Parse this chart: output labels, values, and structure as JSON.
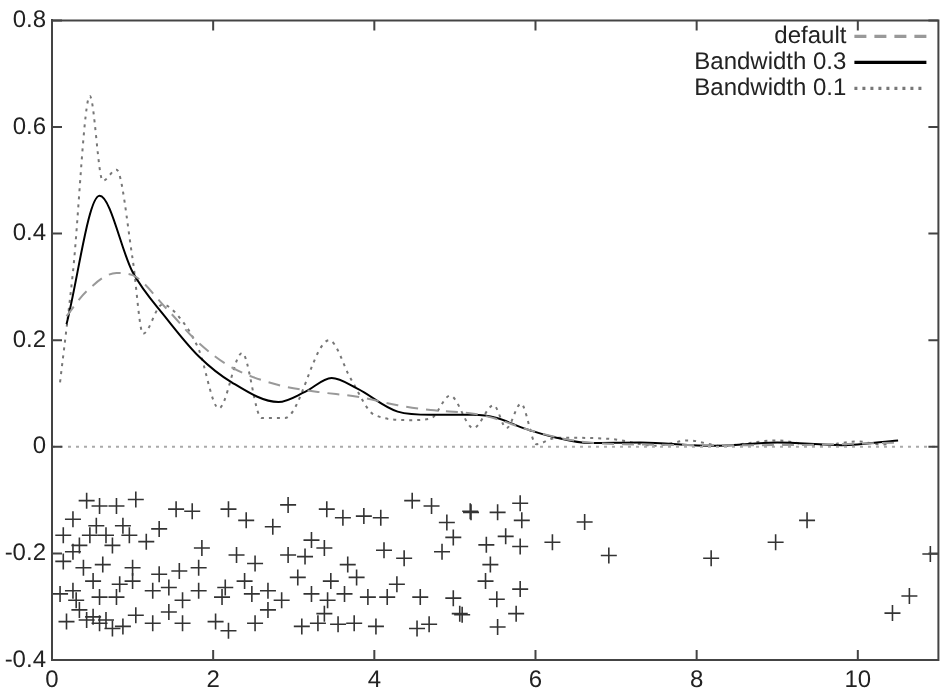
{
  "chart_data": {
    "type": "line",
    "xlim": [
      0,
      11
    ],
    "xticks": [
      0,
      2,
      4,
      6,
      8,
      10
    ],
    "ylim": [
      -0.4,
      0.8
    ],
    "yticks": [
      -0.4,
      -0.2,
      0,
      0.2,
      0.4,
      0.6,
      0.8
    ],
    "grid": false,
    "legend": "top right",
    "ref_lines": [
      {
        "axis": "y",
        "value": 0,
        "color": "#aaaaaa",
        "line_style": "dotted"
      }
    ],
    "series": [
      {
        "name": "default",
        "color": "#999999",
        "line_style": "dashed",
        "marker": "none",
        "x": [
          0.18,
          0.43,
          0.8,
          1.0,
          1.41,
          1.82,
          2.23,
          2.81,
          3.3,
          3.79,
          4.29,
          4.7,
          5.23,
          5.52,
          5.85,
          6.26,
          6.67,
          7.5,
          8.5,
          9.5,
          10.5
        ],
        "values": [
          0.245,
          0.292,
          0.326,
          0.322,
          0.261,
          0.195,
          0.149,
          0.116,
          0.103,
          0.094,
          0.078,
          0.069,
          0.062,
          0.052,
          0.035,
          0.018,
          0.008,
          0.004,
          0.003,
          0.004,
          0.008
        ]
      },
      {
        "name": "Bandwidth 0.3",
        "color": "#000000",
        "line_style": "solid",
        "marker": "none",
        "x": [
          0.18,
          0.59,
          1.0,
          1.41,
          1.82,
          2.23,
          2.81,
          3.14,
          3.47,
          3.79,
          4.29,
          4.7,
          5.23,
          5.52,
          5.85,
          6.26,
          6.67,
          7.3,
          8.2,
          9.0,
          9.8,
          10.5
        ],
        "values": [
          0.23,
          0.471,
          0.328,
          0.243,
          0.17,
          0.121,
          0.084,
          0.103,
          0.129,
          0.109,
          0.066,
          0.06,
          0.06,
          0.054,
          0.035,
          0.017,
          0.007,
          0.008,
          0.002,
          0.008,
          0.003,
          0.012
        ]
      },
      {
        "name": "Bandwidth 0.1",
        "color": "#777777",
        "line_style": "dotted",
        "marker": "none",
        "x": [
          0.1,
          0.26,
          0.47,
          0.63,
          0.8,
          1.0,
          1.13,
          1.37,
          1.58,
          1.82,
          2.07,
          2.36,
          2.6,
          2.89,
          3.44,
          3.71,
          4.0,
          4.45,
          4.7,
          4.94,
          5.23,
          5.48,
          5.64,
          5.82,
          6.01,
          6.26,
          6.91,
          7.5,
          7.9,
          8.3,
          9.0,
          9.5,
          10.0,
          10.3,
          10.5
        ],
        "values": [
          0.121,
          0.328,
          0.658,
          0.499,
          0.52,
          0.353,
          0.212,
          0.267,
          0.243,
          0.183,
          0.072,
          0.176,
          0.054,
          0.054,
          0.2,
          0.127,
          0.06,
          0.05,
          0.053,
          0.096,
          0.035,
          0.078,
          0.035,
          0.081,
          0.005,
          0.017,
          0.015,
          0.002,
          0.012,
          0.002,
          0.012,
          0.002,
          0.01,
          0.004,
          0.014
        ]
      },
      {
        "type": "scatter",
        "color": "#333333",
        "marker": "cross",
        "x": [
          5.2,
          5.53,
          5.81,
          5.83,
          5.63,
          5.39,
          5.81,
          6.21,
          6.61,
          6.91,
          8.18,
          8.98,
          9.37,
          5.44,
          5.38,
          5.52,
          5.81,
          5.76,
          5.53,
          5.09,
          10.43,
          10.64,
          10.9,
          1.04,
          0.43,
          0.59,
          0.8,
          0.26,
          0.55,
          0.88,
          1.54,
          1.74,
          2.19,
          2.41,
          2.74,
          2.93,
          3.41,
          3.61,
          3.87,
          4.08,
          4.47,
          4.71,
          4.9,
          4.98,
          5.19,
          3.22,
          3.38,
          0.34,
          0.75,
          1.17,
          1.33,
          1.86,
          2.29,
          2.52,
          2.93,
          3.14,
          3.67,
          4.12,
          4.37,
          4.84,
          0.14,
          0.39,
          0.63,
          1.0,
          1.33,
          1.58,
          1.82,
          2.15,
          2.39,
          2.68,
          3.05,
          3.46,
          3.78,
          4.28,
          0.1,
          0.3,
          0.59,
          0.8,
          1.25,
          1.62,
          2.11,
          2.48,
          2.85,
          3.22,
          3.42,
          3.63,
          3.92,
          4.16,
          4.57,
          4.98,
          0.18,
          0.43,
          0.59,
          0.75,
          0.88,
          1.04,
          1.25,
          1.45,
          1.62,
          2.03,
          2.19,
          2.52,
          2.68,
          3.1,
          3.3,
          3.55,
          3.75,
          4.02,
          3.38,
          4.53,
          4.68,
          5.06,
          0.34,
          0.51,
          0.67,
          0.14,
          0.26,
          0.47,
          0.67,
          0.96,
          0.26,
          0.51,
          0.84,
          1.0,
          1.45,
          1.82
        ],
        "values": [
          -0.123,
          -0.123,
          -0.106,
          -0.138,
          -0.168,
          -0.184,
          -0.187,
          -0.179,
          -0.141,
          -0.204,
          -0.209,
          -0.179,
          -0.138,
          -0.221,
          -0.252,
          -0.286,
          -0.267,
          -0.313,
          -0.338,
          -0.315,
          -0.312,
          -0.28,
          -0.201,
          -0.099,
          -0.101,
          -0.111,
          -0.111,
          -0.136,
          -0.148,
          -0.148,
          -0.117,
          -0.121,
          -0.117,
          -0.138,
          -0.15,
          -0.109,
          -0.117,
          -0.133,
          -0.13,
          -0.133,
          -0.101,
          -0.111,
          -0.142,
          -0.17,
          -0.121,
          -0.175,
          -0.19,
          -0.185,
          -0.185,
          -0.178,
          -0.154,
          -0.19,
          -0.203,
          -0.219,
          -0.203,
          -0.206,
          -0.221,
          -0.194,
          -0.209,
          -0.197,
          -0.215,
          -0.227,
          -0.221,
          -0.227,
          -0.239,
          -0.233,
          -0.227,
          -0.264,
          -0.252,
          -0.27,
          -0.245,
          -0.252,
          -0.245,
          -0.258,
          -0.276,
          -0.288,
          -0.282,
          -0.282,
          -0.27,
          -0.288,
          -0.282,
          -0.276,
          -0.288,
          -0.276,
          -0.288,
          -0.276,
          -0.282,
          -0.282,
          -0.282,
          -0.284,
          -0.328,
          -0.325,
          -0.331,
          -0.341,
          -0.337,
          -0.316,
          -0.331,
          -0.31,
          -0.331,
          -0.328,
          -0.345,
          -0.331,
          -0.306,
          -0.337,
          -0.331,
          -0.333,
          -0.331,
          -0.337,
          -0.313,
          -0.341,
          -0.333,
          -0.313,
          -0.306,
          -0.319,
          -0.325,
          -0.166,
          -0.197,
          -0.166,
          -0.166,
          -0.166,
          -0.27,
          -0.252,
          -0.258,
          -0.252,
          -0.264,
          -0.27
        ]
      }
    ]
  }
}
